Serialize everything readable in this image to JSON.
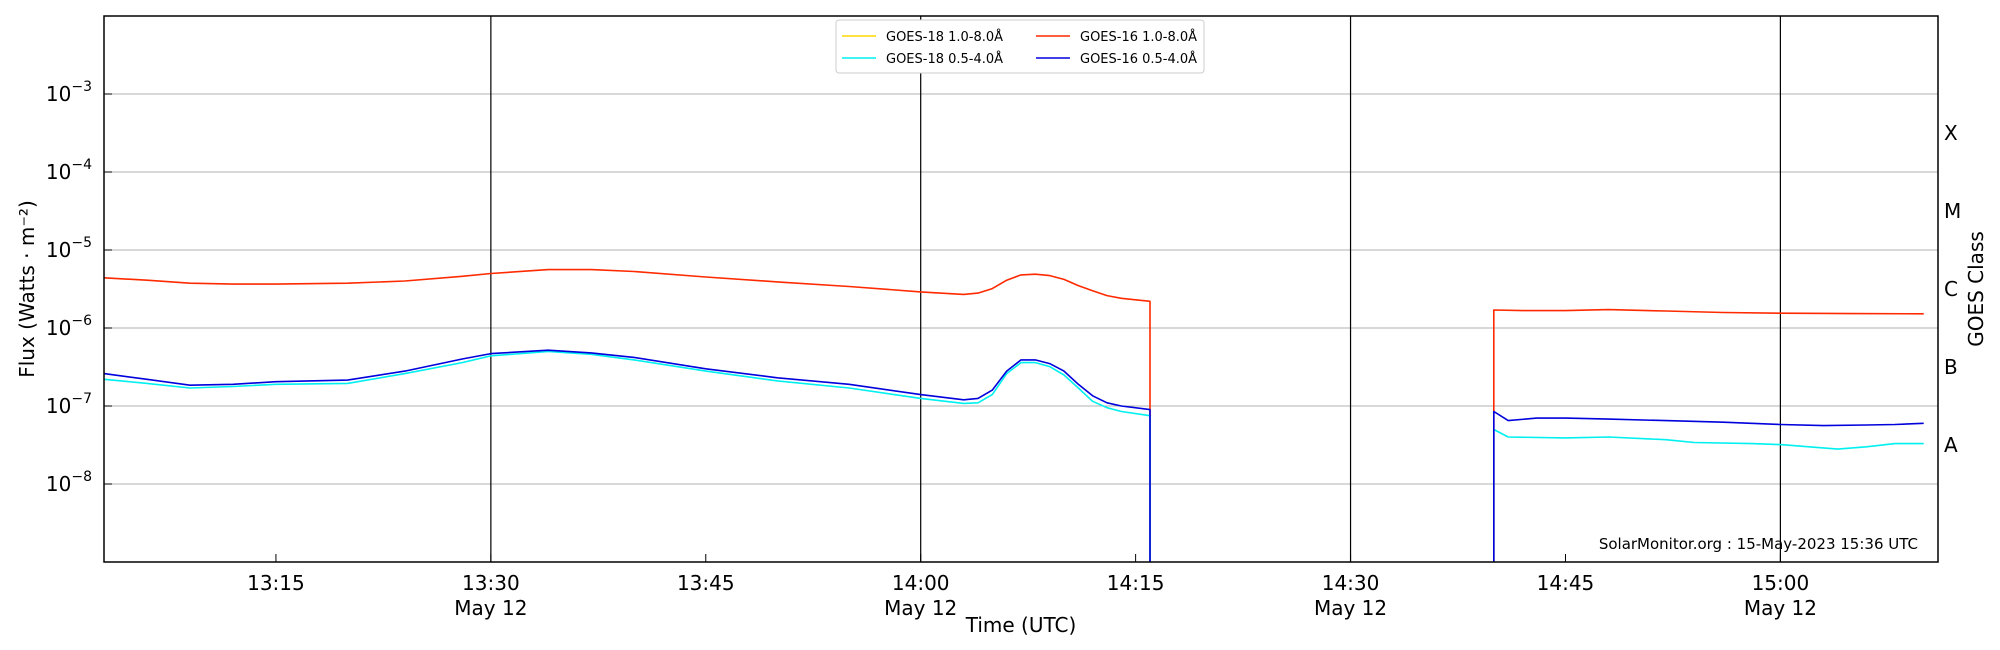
{
  "chart_data": {
    "type": "line",
    "xlabel": "Time (UTC)",
    "ylabel": "Flux (Watts · m⁻²)",
    "ylabel_right": "GOES Class",
    "y_scale": "log",
    "ylim": [
      1e-09,
      0.01
    ],
    "xlim": [
      "13:03",
      "15:11"
    ],
    "grid": true,
    "legend_placement": "top-center",
    "credit": "SolarMonitor.org : 15-May-2023 15:36 UTC",
    "y_ticks": [
      {
        "value": 1e-08,
        "base": "10",
        "exp": "−8"
      },
      {
        "value": 1e-07,
        "base": "10",
        "exp": "−7"
      },
      {
        "value": 1e-06,
        "base": "10",
        "exp": "−6"
      },
      {
        "value": 1e-05,
        "base": "10",
        "exp": "−5"
      },
      {
        "value": 0.0001,
        "base": "10",
        "exp": "−4"
      },
      {
        "value": 0.001,
        "base": "10",
        "exp": "−3"
      }
    ],
    "x_ticks": [
      {
        "time": "13:15",
        "label": "13:15",
        "date": ""
      },
      {
        "time": "13:30",
        "label": "13:30",
        "date": "May 12"
      },
      {
        "time": "13:45",
        "label": "13:45",
        "date": ""
      },
      {
        "time": "14:00",
        "label": "14:00",
        "date": "May 12"
      },
      {
        "time": "14:15",
        "label": "14:15",
        "date": ""
      },
      {
        "time": "14:30",
        "label": "14:30",
        "date": "May 12"
      },
      {
        "time": "14:45",
        "label": "14:45",
        "date": ""
      },
      {
        "time": "15:00",
        "label": "15:00",
        "date": "May 12"
      }
    ],
    "vlines": [
      "13:30",
      "14:00",
      "14:30",
      "15:00"
    ],
    "goes_classes": [
      {
        "label": "A",
        "value": 3.16e-08
      },
      {
        "label": "B",
        "value": 3.16e-07
      },
      {
        "label": "C",
        "value": 3.16e-06
      },
      {
        "label": "M",
        "value": 3.16e-05
      },
      {
        "label": "X",
        "value": 0.000316
      }
    ],
    "legend": [
      {
        "name": "GOES-18 1.0-8.0Å",
        "color": "#ffd700"
      },
      {
        "name": "GOES-16 1.0-8.0Å",
        "color": "#ff2a00"
      },
      {
        "name": "GOES-18 0.5-4.0Å",
        "color": "#00f0f0"
      },
      {
        "name": "GOES-16 0.5-4.0Å",
        "color": "#0000dd"
      }
    ],
    "series": [
      {
        "name": "GOES-16 1.0-8.0Å",
        "color": "#ff2a00",
        "segments": [
          {
            "drop_end": true,
            "points": [
              [
                "13:03",
                4.4e-06
              ],
              [
                "13:06",
                4.1e-06
              ],
              [
                "13:09",
                3.75e-06
              ],
              [
                "13:12",
                3.65e-06
              ],
              [
                "13:15",
                3.65e-06
              ],
              [
                "13:20",
                3.75e-06
              ],
              [
                "13:24",
                4e-06
              ],
              [
                "13:28",
                4.6e-06
              ],
              [
                "13:30",
                5e-06
              ],
              [
                "13:34",
                5.6e-06
              ],
              [
                "13:37",
                5.6e-06
              ],
              [
                "13:40",
                5.3e-06
              ],
              [
                "13:45",
                4.5e-06
              ],
              [
                "13:50",
                3.9e-06
              ],
              [
                "13:55",
                3.4e-06
              ],
              [
                "14:00",
                2.9e-06
              ],
              [
                "14:03",
                2.7e-06
              ],
              [
                "14:04",
                2.8e-06
              ],
              [
                "14:05",
                3.2e-06
              ],
              [
                "14:06",
                4.1e-06
              ],
              [
                "14:07",
                4.8e-06
              ],
              [
                "14:08",
                4.9e-06
              ],
              [
                "14:09",
                4.7e-06
              ],
              [
                "14:10",
                4.2e-06
              ],
              [
                "14:11",
                3.5e-06
              ],
              [
                "14:12",
                3e-06
              ],
              [
                "14:13",
                2.6e-06
              ],
              [
                "14:14",
                2.4e-06
              ],
              [
                "14:16",
                2.2e-06
              ]
            ]
          },
          {
            "drop_start": true,
            "points": [
              [
                "14:40",
                1.7e-06
              ],
              [
                "14:42",
                1.67e-06
              ],
              [
                "14:45",
                1.67e-06
              ],
              [
                "14:48",
                1.72e-06
              ],
              [
                "14:52",
                1.65e-06
              ],
              [
                "14:56",
                1.58e-06
              ],
              [
                "15:00",
                1.55e-06
              ],
              [
                "15:05",
                1.53e-06
              ],
              [
                "15:10",
                1.52e-06
              ]
            ]
          }
        ]
      },
      {
        "name": "GOES-18 0.5-4.0Å",
        "color": "#00f0f0",
        "segments": [
          {
            "drop_end": true,
            "points": [
              [
                "13:03",
                2.2e-07
              ],
              [
                "13:06",
                1.95e-07
              ],
              [
                "13:09",
                1.7e-07
              ],
              [
                "13:12",
                1.78e-07
              ],
              [
                "13:15",
                1.9e-07
              ],
              [
                "13:20",
                1.95e-07
              ],
              [
                "13:24",
                2.6e-07
              ],
              [
                "13:28",
                3.6e-07
              ],
              [
                "13:30",
                4.4e-07
              ],
              [
                "13:34",
                5e-07
              ],
              [
                "13:37",
                4.6e-07
              ],
              [
                "13:40",
                3.9e-07
              ],
              [
                "13:45",
                2.8e-07
              ],
              [
                "13:50",
                2.1e-07
              ],
              [
                "13:55",
                1.7e-07
              ],
              [
                "14:00",
                1.25e-07
              ],
              [
                "14:03",
                1.08e-07
              ],
              [
                "14:04",
                1.1e-07
              ],
              [
                "14:05",
                1.4e-07
              ],
              [
                "14:06",
                2.6e-07
              ],
              [
                "14:07",
                3.6e-07
              ],
              [
                "14:08",
                3.6e-07
              ],
              [
                "14:09",
                3.2e-07
              ],
              [
                "14:10",
                2.5e-07
              ],
              [
                "14:11",
                1.7e-07
              ],
              [
                "14:12",
                1.15e-07
              ],
              [
                "14:13",
                9.5e-08
              ],
              [
                "14:14",
                8.5e-08
              ],
              [
                "14:16",
                7.5e-08
              ]
            ]
          },
          {
            "drop_start": true,
            "points": [
              [
                "14:40",
                5e-08
              ],
              [
                "14:41",
                4e-08
              ],
              [
                "14:45",
                3.9e-08
              ],
              [
                "14:48",
                4e-08
              ],
              [
                "14:52",
                3.7e-08
              ],
              [
                "14:54",
                3.4e-08
              ],
              [
                "14:58",
                3.3e-08
              ],
              [
                "15:00",
                3.2e-08
              ],
              [
                "15:02",
                3e-08
              ],
              [
                "15:04",
                2.8e-08
              ],
              [
                "15:06",
                3e-08
              ],
              [
                "15:08",
                3.3e-08
              ],
              [
                "15:10",
                3.3e-08
              ]
            ]
          }
        ]
      },
      {
        "name": "GOES-16 0.5-4.0Å",
        "color": "#0000dd",
        "segments": [
          {
            "drop_end": true,
            "points": [
              [
                "13:03",
                2.6e-07
              ],
              [
                "13:06",
                2.2e-07
              ],
              [
                "13:09",
                1.85e-07
              ],
              [
                "13:12",
                1.9e-07
              ],
              [
                "13:15",
                2.05e-07
              ],
              [
                "13:20",
                2.15e-07
              ],
              [
                "13:24",
                2.8e-07
              ],
              [
                "13:28",
                4e-07
              ],
              [
                "13:30",
                4.7e-07
              ],
              [
                "13:34",
                5.2e-07
              ],
              [
                "13:37",
                4.8e-07
              ],
              [
                "13:40",
                4.2e-07
              ],
              [
                "13:45",
                3e-07
              ],
              [
                "13:50",
                2.3e-07
              ],
              [
                "13:55",
                1.9e-07
              ],
              [
                "14:00",
                1.4e-07
              ],
              [
                "14:03",
                1.2e-07
              ],
              [
                "14:04",
                1.25e-07
              ],
              [
                "14:05",
                1.6e-07
              ],
              [
                "14:06",
                2.8e-07
              ],
              [
                "14:07",
                3.9e-07
              ],
              [
                "14:08",
                3.9e-07
              ],
              [
                "14:09",
                3.5e-07
              ],
              [
                "14:10",
                2.8e-07
              ],
              [
                "14:11",
                1.9e-07
              ],
              [
                "14:12",
                1.35e-07
              ],
              [
                "14:13",
                1.1e-07
              ],
              [
                "14:14",
                1e-07
              ],
              [
                "14:16",
                9e-08
              ]
            ]
          },
          {
            "drop_start": true,
            "points": [
              [
                "14:40",
                8.5e-08
              ],
              [
                "14:41",
                6.5e-08
              ],
              [
                "14:43",
                7e-08
              ],
              [
                "14:45",
                7e-08
              ],
              [
                "14:48",
                6.8e-08
              ],
              [
                "14:52",
                6.5e-08
              ],
              [
                "14:56",
                6.2e-08
              ],
              [
                "15:00",
                5.8e-08
              ],
              [
                "15:03",
                5.6e-08
              ],
              [
                "15:06",
                5.7e-08
              ],
              [
                "15:08",
                5.8e-08
              ],
              [
                "15:10",
                6e-08
              ]
            ]
          }
        ]
      }
    ]
  }
}
